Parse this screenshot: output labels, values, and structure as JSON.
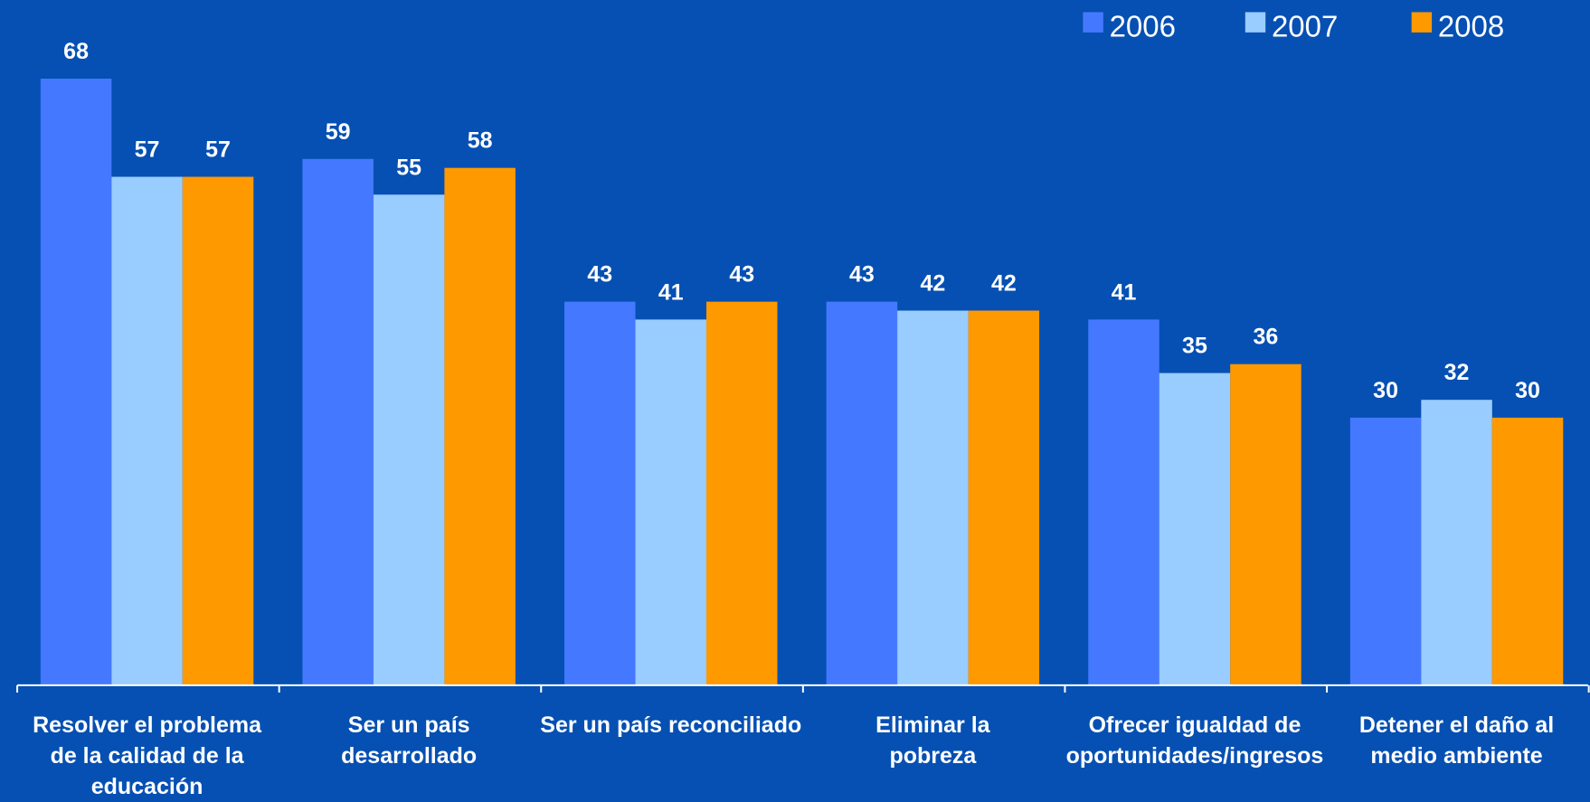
{
  "chart_data": {
    "type": "bar",
    "categories": [
      [
        "Resolver el problema",
        "de la calidad de la",
        "educación"
      ],
      [
        "Ser un país",
        "desarrollado"
      ],
      [
        "Ser un país reconciliado"
      ],
      [
        "Eliminar la",
        "pobreza"
      ],
      [
        "Ofrecer igualdad de",
        "oportunidades/ingresos"
      ],
      [
        "Detener el daño al",
        "medio ambiente"
      ]
    ],
    "series": [
      {
        "name": "2006",
        "color": "#4479ff",
        "values": [
          68,
          59,
          43,
          43,
          41,
          30
        ]
      },
      {
        "name": "2007",
        "color": "#99ccff",
        "values": [
          57,
          55,
          41,
          42,
          35,
          32
        ]
      },
      {
        "name": "2008",
        "color": "#ff9900",
        "values": [
          57,
          58,
          43,
          42,
          36,
          30
        ]
      }
    ],
    "legend": "top-right"
  }
}
